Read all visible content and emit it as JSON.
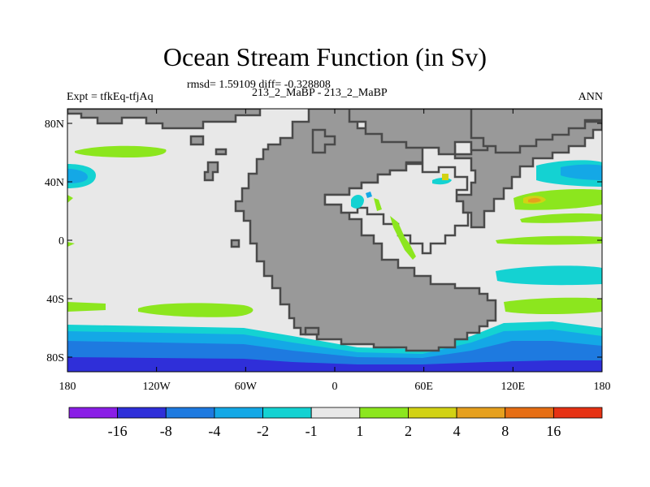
{
  "title": "Ocean Stream Function (in Sv)",
  "stats": "rmsd= 1.59109 diff= -0.328808",
  "experiment": "Expt = tfkEq-tfjAq",
  "comparison": "213_2_MaBP - 213_2_MaBP",
  "period": "ANN",
  "map": {
    "lon_range": [
      -180,
      180
    ],
    "lat_range": [
      -90,
      90
    ],
    "x_ticks": [
      {
        "value": -180,
        "label": "180"
      },
      {
        "value": -120,
        "label": "120W"
      },
      {
        "value": -60,
        "label": "60W"
      },
      {
        "value": 0,
        "label": "0"
      },
      {
        "value": 60,
        "label": "60E"
      },
      {
        "value": 120,
        "label": "120E"
      },
      {
        "value": 180,
        "label": "180"
      }
    ],
    "y_ticks": [
      {
        "value": 80,
        "label": "80N"
      },
      {
        "value": 40,
        "label": "40N"
      },
      {
        "value": 0,
        "label": "0"
      },
      {
        "value": -40,
        "label": "40S"
      },
      {
        "value": -80,
        "label": "80S"
      }
    ],
    "colors": {
      "land": "#999999",
      "ocean_neutral": "#e8e8e8",
      "coast": "#4a4a4a"
    }
  },
  "colorbar": {
    "labels": [
      "-16",
      "-8",
      "-4",
      "-2",
      "-1",
      "1",
      "2",
      "4",
      "8",
      "16"
    ],
    "colors": [
      "#8a1ee6",
      "#2f2fd9",
      "#1e7ae0",
      "#14a8e6",
      "#14d2d2",
      "#e8e8e8",
      "#8ce61e",
      "#d2d214",
      "#e6a01e",
      "#e66e14",
      "#e63214"
    ]
  }
}
